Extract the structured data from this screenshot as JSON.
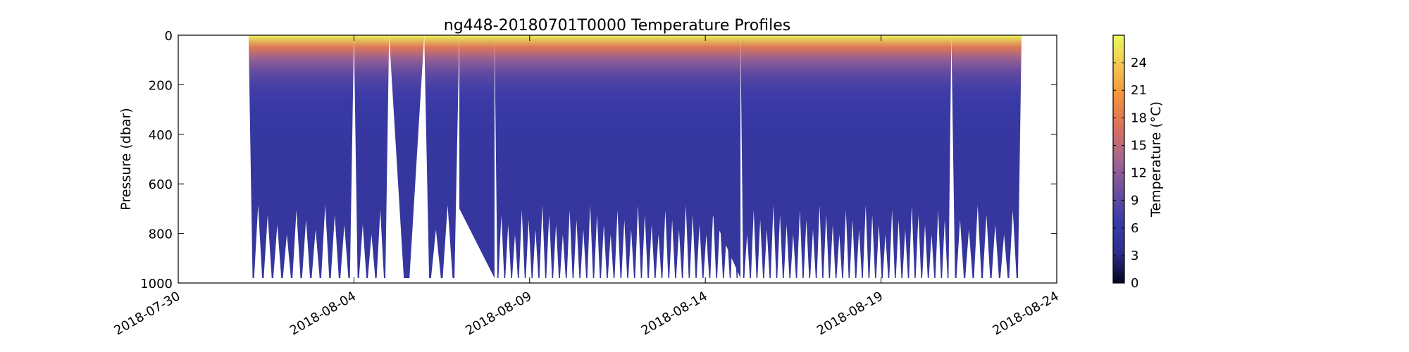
{
  "chart_data": {
    "type": "heatmap",
    "title": "ng448-20180701T0000 Temperature Profiles",
    "xlabel": "",
    "ylabel": "Pressure (dbar)",
    "x_tick_labels": [
      "2018-07-30",
      "2018-08-04",
      "2018-08-09",
      "2018-08-14",
      "2018-08-19",
      "2018-08-24"
    ],
    "x_range": [
      "2018-07-30",
      "2018-08-24"
    ],
    "y_ticks": [
      0,
      200,
      400,
      600,
      800,
      1000
    ],
    "y_range": [
      0,
      1000
    ],
    "y_inverted": true,
    "grid": false,
    "colorbar": {
      "label": "Temperature (°C)",
      "ticks": [
        0,
        3,
        6,
        9,
        12,
        15,
        18,
        21,
        24
      ],
      "range": [
        0,
        27
      ],
      "colors": [
        "#03051a",
        "#2e2e8f",
        "#3b3ba8",
        "#6e4f9e",
        "#a5668f",
        "#d9705f",
        "#f4903c",
        "#f5c450",
        "#e7fa5a"
      ]
    },
    "profiles": {
      "start_date": "2018-08-01",
      "end_date": "2018-08-23",
      "surface_temperature": 26.5,
      "deep_temperature": 5.5,
      "max_pressure": 980,
      "dive_segments": [
        {
          "start": "2018-08-01",
          "end": "2018-08-04",
          "dives": 11
        },
        {
          "start": "2018-08-04",
          "end": "2018-08-05",
          "dives": 4
        },
        {
          "start": "2018-08-05",
          "end": "2018-08-06",
          "dives": 1
        },
        {
          "start": "2018-08-06",
          "end": "2018-08-07",
          "dives": 3
        },
        {
          "start": "2018-08-08",
          "end": "2018-08-15",
          "dives": 36
        },
        {
          "start": "2018-08-15",
          "end": "2018-08-21",
          "dives": 32
        },
        {
          "start": "2018-08-21",
          "end": "2018-08-23",
          "dives": 8
        }
      ],
      "gaps": [
        {
          "start": "2018-08-07",
          "end": "2018-08-08",
          "shallow_depth": 700
        },
        {
          "start": "2018-08-14",
          "end": "2018-08-15",
          "shallow_depth": 660
        }
      ]
    }
  }
}
